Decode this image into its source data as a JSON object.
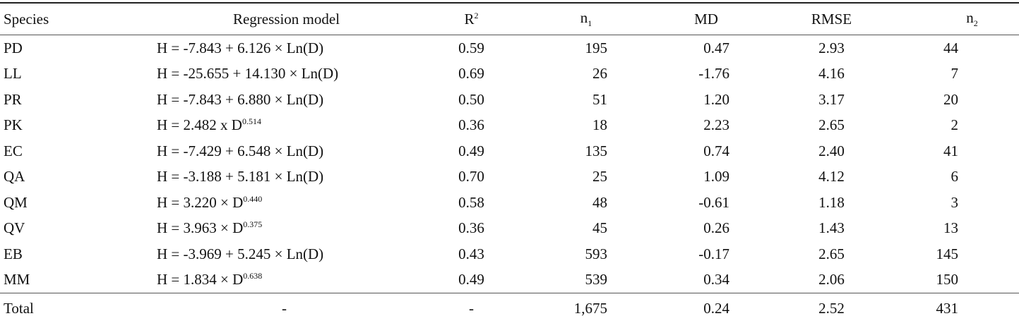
{
  "table": {
    "header": [
      "Species",
      "Regression model",
      {
        "text": "R",
        "sup": "2"
      },
      {
        "text": "n",
        "sub": "1"
      },
      "MD",
      "RMSE",
      {
        "text": "n",
        "sub": "2"
      }
    ],
    "rows": [
      [
        "PD",
        "H = -7.843 + 6.126 × Ln(D)",
        "0.59",
        "195",
        "0.47",
        "2.93",
        "44"
      ],
      [
        "LL",
        "H = -25.655 + 14.130 × Ln(D)",
        "0.69",
        "26",
        "-1.76",
        "4.16",
        "7"
      ],
      [
        "PR",
        "H = -7.843 + 6.880 × Ln(D)",
        "0.50",
        "51",
        "1.20",
        "3.17",
        "20"
      ],
      [
        "PK",
        {
          "text": "H = 2.482 x D",
          "sup": "0.514"
        },
        "0.36",
        "18",
        "2.23",
        "2.65",
        "2"
      ],
      [
        "EC",
        "H = -7.429 + 6.548 × Ln(D)",
        "0.49",
        "135",
        "0.74",
        "2.40",
        "41"
      ],
      [
        "QA",
        "H = -3.188 + 5.181 × Ln(D)",
        "0.70",
        "25",
        "1.09",
        "4.12",
        "6"
      ],
      [
        "QM",
        {
          "text": "H = 3.220 × D",
          "sup": "0.440"
        },
        "0.58",
        "48",
        "-0.61",
        "1.18",
        "3"
      ],
      [
        "QV",
        {
          "text": "H = 3.963 × D",
          "sup": "0.375"
        },
        "0.36",
        "45",
        "0.26",
        "1.43",
        "13"
      ],
      [
        "EB",
        "H = -3.969 + 5.245 × Ln(D)",
        "0.43",
        "593",
        "-0.17",
        "2.65",
        "145"
      ],
      [
        "MM",
        {
          "text": "H = 1.834 × D",
          "sup": "0.638"
        },
        "0.49",
        "539",
        "0.34",
        "2.06",
        "150"
      ]
    ],
    "total": [
      "Total",
      "-",
      "-",
      "1,675",
      "0.24",
      "2.52",
      "431"
    ]
  }
}
